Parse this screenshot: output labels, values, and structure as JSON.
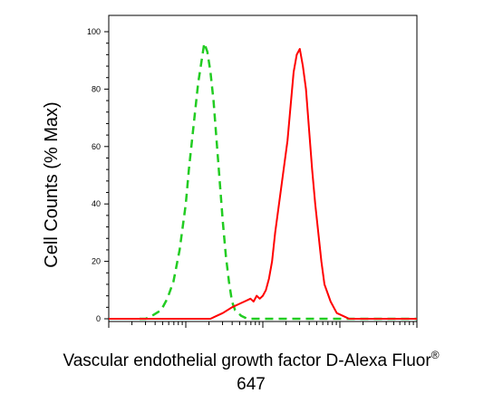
{
  "chart_data": {
    "type": "line",
    "title": "",
    "xlabel": "Vascular endothelial growth factor D-Alexa Fluor",
    "xlabel_superscript": "®",
    "xlabel_line2": "647",
    "ylabel": "Cell Counts (% Max)",
    "x_scale": "log",
    "ylim": [
      0,
      100
    ],
    "yticks": [
      "0",
      "20",
      "40",
      "60",
      "80",
      "100"
    ],
    "ytick_values": [
      0,
      20,
      40,
      60,
      80,
      100
    ],
    "grid": false,
    "legend": "none",
    "series": [
      {
        "color": "#22cc22",
        "style": "dashed",
        "x": [
          0.1,
          0.12,
          0.14,
          0.17,
          0.19,
          0.21,
          0.23,
          0.25,
          0.26,
          0.27,
          0.28,
          0.29,
          0.3,
          0.31,
          0.32,
          0.33,
          0.34,
          0.35,
          0.36,
          0.37,
          0.38,
          0.39,
          0.4,
          0.41,
          0.43,
          0.45,
          0.47,
          0.5,
          0.55,
          0.6,
          0.65,
          0.75,
          0.85,
          1.0
        ],
        "y": [
          0,
          0,
          1,
          3,
          7,
          13,
          24,
          40,
          52,
          62,
          72,
          82,
          89,
          96,
          93,
          86,
          76,
          62,
          48,
          34,
          22,
          13,
          6,
          3,
          1,
          0,
          0,
          0,
          0,
          0,
          0,
          0,
          0,
          0
        ]
      },
      {
        "color": "#ff0000",
        "style": "solid",
        "x": [
          0.0,
          0.33,
          0.35,
          0.37,
          0.4,
          0.42,
          0.44,
          0.46,
          0.47,
          0.48,
          0.49,
          0.5,
          0.51,
          0.52,
          0.53,
          0.54,
          0.56,
          0.58,
          0.59,
          0.6,
          0.61,
          0.62,
          0.63,
          0.64,
          0.65,
          0.66,
          0.67,
          0.68,
          0.69,
          0.7,
          0.72,
          0.74,
          0.76,
          0.78,
          0.82,
          0.9,
          1.0
        ],
        "y": [
          0,
          0,
          1,
          2,
          4,
          5,
          6,
          7,
          6,
          8,
          7,
          8,
          10,
          14,
          20,
          30,
          46,
          62,
          74,
          86,
          92,
          94,
          88,
          80,
          66,
          52,
          40,
          30,
          20,
          12,
          6,
          2,
          1,
          0,
          0,
          0,
          0
        ]
      }
    ]
  }
}
